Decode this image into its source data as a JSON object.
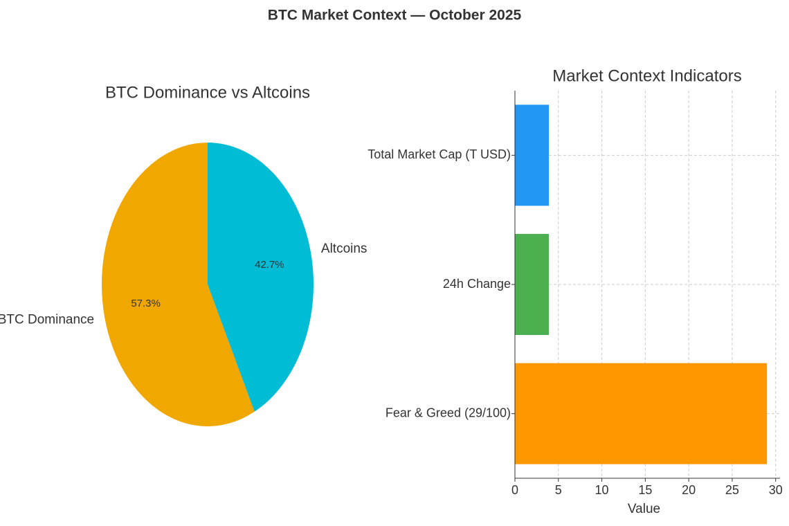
{
  "title": "BTC Market Context — October 2025",
  "chart_data": [
    {
      "type": "pie",
      "title": "BTC Dominance vs Altcoins",
      "categories": [
        "BTC Dominance",
        "Altcoins"
      ],
      "values": [
        57.3,
        42.7
      ],
      "value_labels": [
        "57.3%",
        "42.7%"
      ],
      "colors": [
        "#f0a800",
        "#00bcd4"
      ]
    },
    {
      "type": "hbar",
      "title": "Market Context Indicators",
      "categories": [
        "Total Market Cap (T USD)",
        "24h Change",
        "Fear & Greed (29/100)"
      ],
      "values": [
        3.9,
        3.9,
        29
      ],
      "colors": [
        "#2196f3",
        "#4caf50",
        "#ff9800"
      ],
      "xlabel": "Value",
      "xlim": [
        0,
        30.5
      ],
      "xticks": [
        0,
        5,
        10,
        15,
        20,
        25,
        30
      ],
      "grid": true
    }
  ]
}
